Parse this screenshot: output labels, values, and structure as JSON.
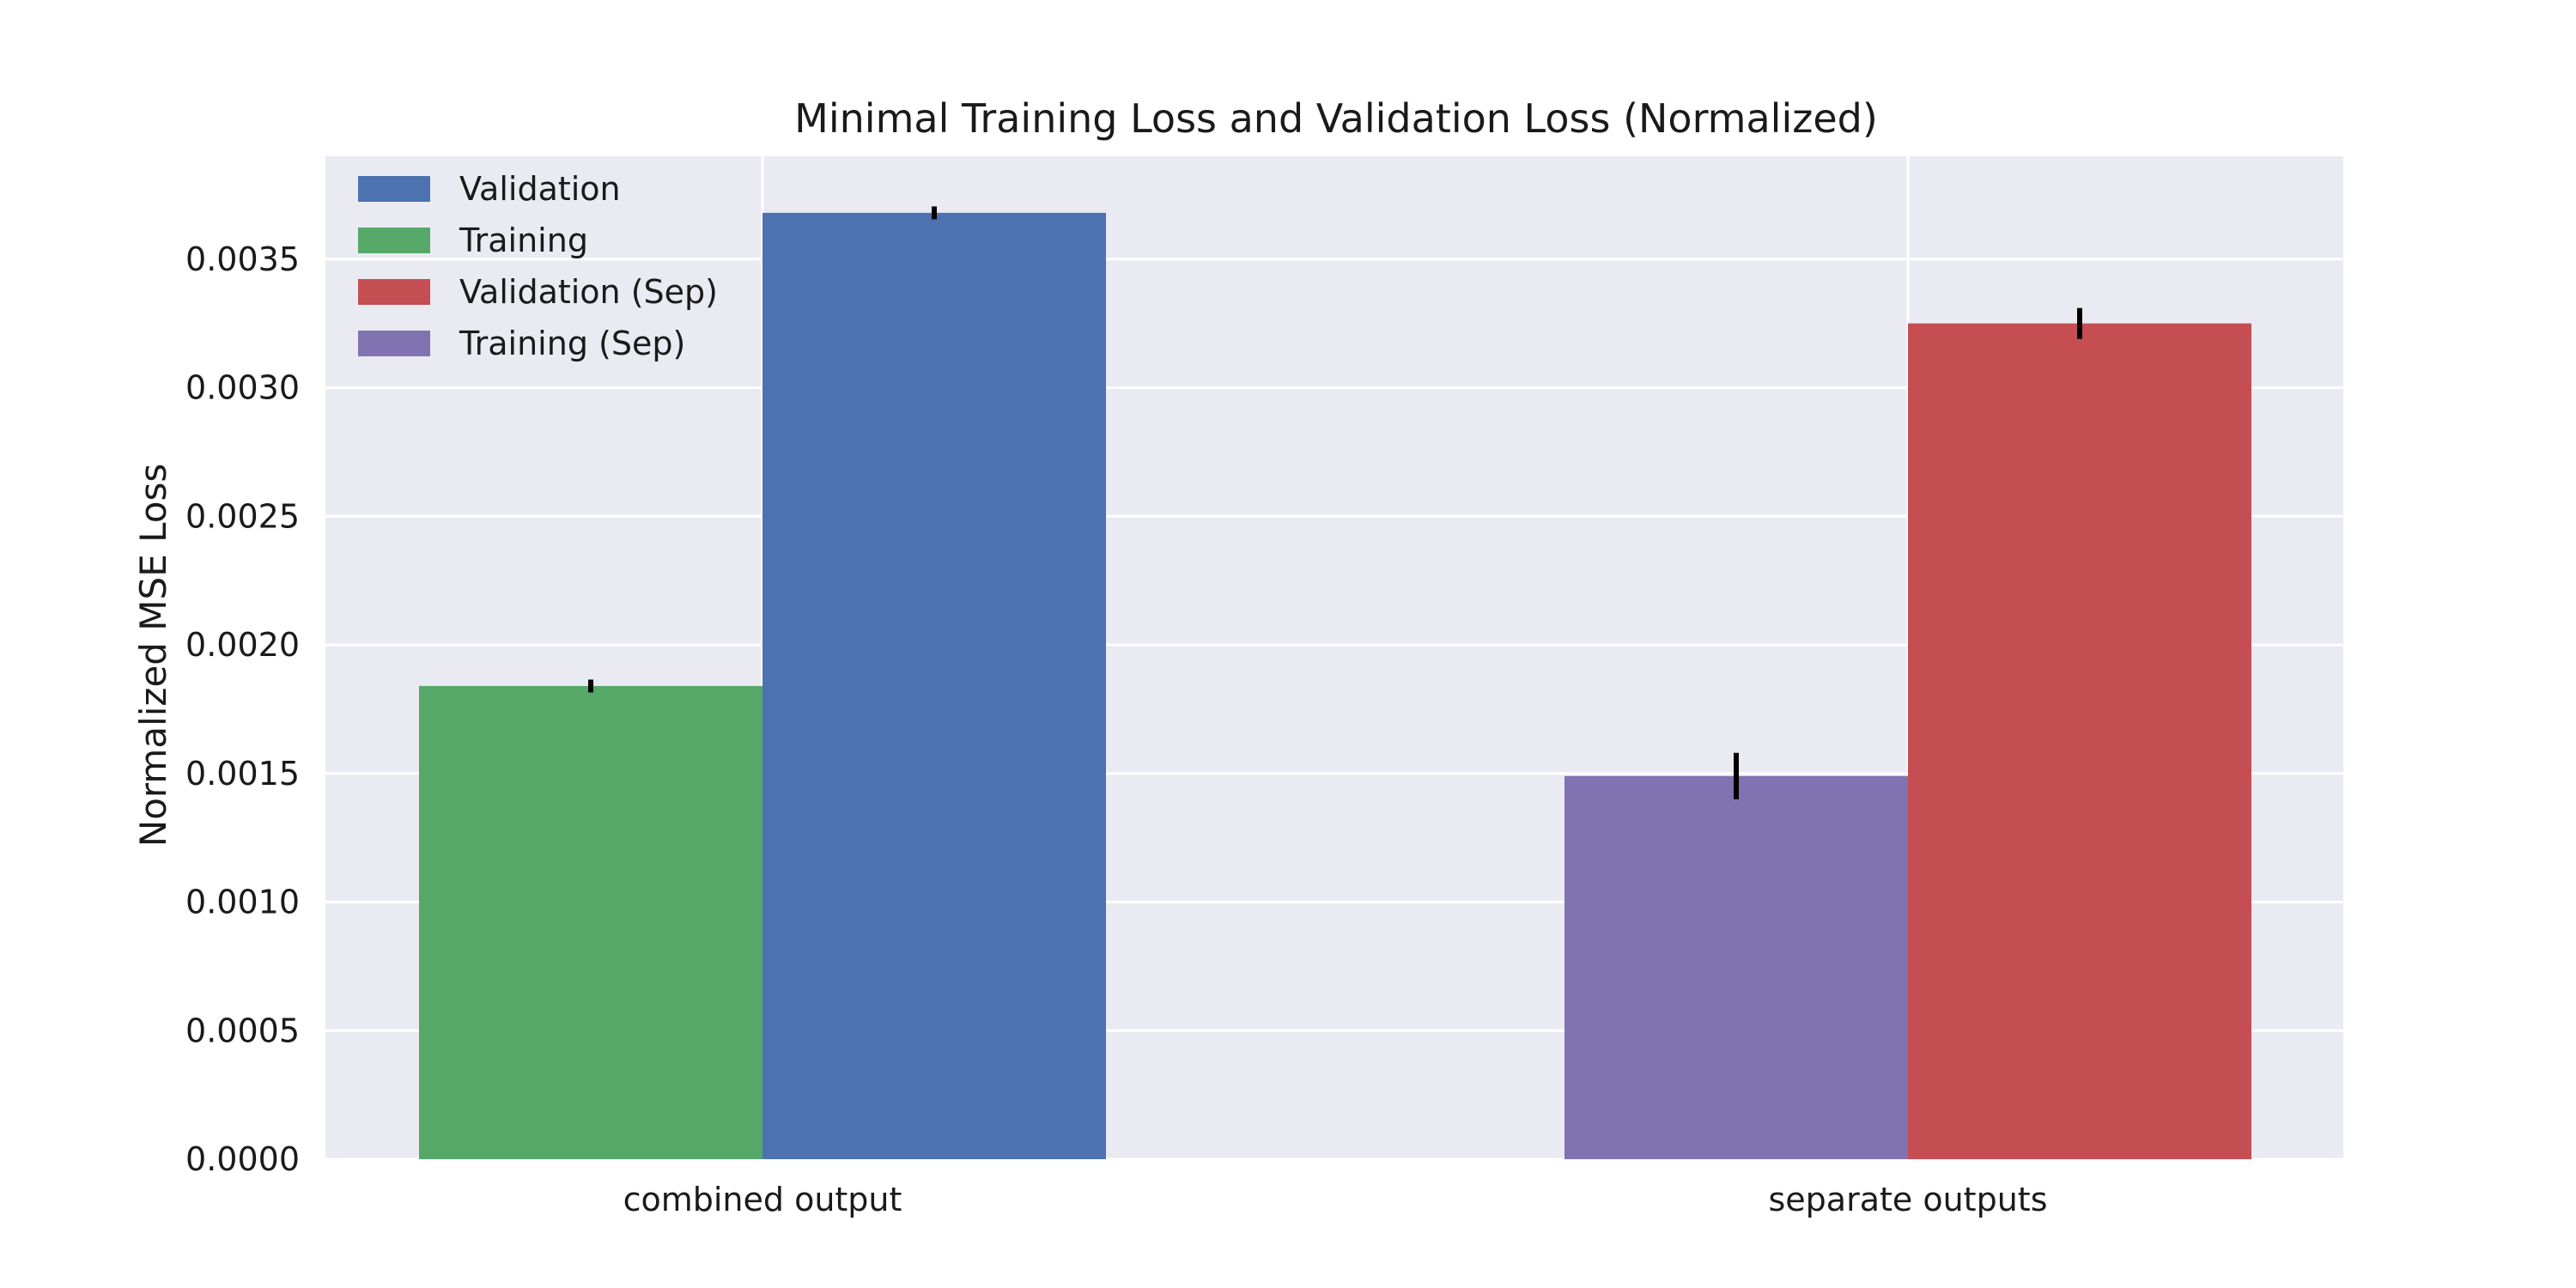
{
  "chart_data": {
    "type": "bar",
    "title": "Minimal Training Loss and Validation Loss (Normalized)",
    "xlabel": "",
    "ylabel": "Normalized MSE Loss",
    "categories": [
      "combined output",
      "separate outputs"
    ],
    "ylim": [
      0,
      0.0039
    ],
    "yticks": [
      0.0,
      0.0005,
      0.001,
      0.0015,
      0.002,
      0.0025,
      0.003,
      0.0035
    ],
    "ytick_labels": [
      "0.0000",
      "0.0005",
      "0.0010",
      "0.0015",
      "0.0020",
      "0.0025",
      "0.0030",
      "0.0035"
    ],
    "grid": true,
    "legend_position": "top-left",
    "series": [
      {
        "name": "Validation",
        "color": "#4c72b0",
        "category": "combined output",
        "value": 0.00368,
        "error": 2.5e-05,
        "placement": "right"
      },
      {
        "name": "Training",
        "color": "#55a868",
        "category": "combined output",
        "value": 0.00184,
        "error": 2.5e-05,
        "placement": "left"
      },
      {
        "name": "Validation (Sep)",
        "color": "#c44e52",
        "category": "separate outputs",
        "value": 0.00325,
        "error": 6e-05,
        "placement": "right"
      },
      {
        "name": "Training (Sep)",
        "color": "#8172b2",
        "category": "separate outputs",
        "value": 0.00149,
        "error": 9e-05,
        "placement": "left"
      }
    ],
    "colors": {
      "plot_background": "#eaeaf2",
      "grid": "#ffffff",
      "error_bar": "#000000"
    }
  }
}
